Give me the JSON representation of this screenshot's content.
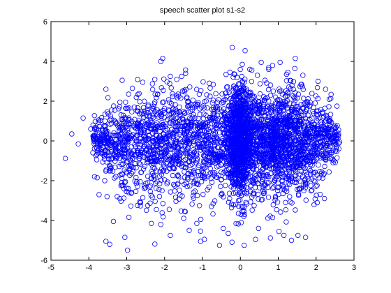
{
  "chart_data": {
    "type": "scatter",
    "title": "speech scatter plot s1-s2",
    "xlabel": "",
    "ylabel": "",
    "xlim": [
      -5,
      3
    ],
    "ylim": [
      -6,
      6
    ],
    "xticks": [
      -5,
      -4,
      -3,
      -2,
      -1,
      0,
      1,
      2,
      3
    ],
    "yticks": [
      -6,
      -4,
      -2,
      0,
      2,
      4,
      6
    ],
    "grid": false,
    "legend": false,
    "marker": "circle-open",
    "color": "#0000ff",
    "series": [
      {
        "x": [
          -4.62,
          -4.45,
          -4.28,
          -4.15,
          -3.95,
          -3.85,
          -3.78,
          -3.73,
          -3.68,
          -3.55,
          -3.35,
          -3.18,
          -2.98,
          -3.05,
          -2.35,
          -2.05,
          -2.1,
          -1.85,
          -1.35,
          -1.15,
          -3.18,
          -3.55,
          -3.45,
          -3.58,
          -3.12,
          -2.95,
          -2.45,
          -2.58,
          -2.85,
          -2.25,
          -1.85,
          -1.55,
          -1.05,
          -0.95,
          -0.55,
          -0.32,
          -0.15,
          0.05,
          0.25,
          0.45,
          0.55,
          0.65,
          0.85,
          1.05,
          1.25,
          1.45,
          1.65,
          0.4,
          0.1,
          2.05,
          2.25,
          2.55,
          2.62,
          -0.05,
          0.02,
          0.05,
          0.85,
          1.15,
          1.35,
          -0.12,
          -3.25,
          -3.05,
          -2.75,
          -3.4,
          -3.52,
          -2.6,
          -1.48,
          0.48,
          1.02,
          1.52,
          1.72,
          2.22,
          -0.82,
          -0.45,
          0.75,
          1.22,
          -1.25,
          -0.65
        ],
        "y": [
          -0.88,
          0.35,
          -0.15,
          1.15,
          0.6,
          -1.8,
          -1.85,
          -2.7,
          -0.5,
          -5.05,
          -4.05,
          -2.9,
          -5.5,
          -4.85,
          -4.15,
          4.15,
          4.0,
          -4.75,
          -4.5,
          -4.15,
          1.95,
          2.6,
          -5.2,
          -2.0,
          3.05,
          2.35,
          1.55,
          2.95,
          2.65,
          2.35,
          3.25,
          3.25,
          -5.05,
          -4.95,
          -5.25,
          -4.65,
          3.35,
          3.85,
          3.6,
          3.3,
          3.95,
          3.05,
          3.8,
          3.95,
          3.45,
          4.15,
          3.3,
          -4.95,
          -5.25,
          3.0,
          2.6,
          1.75,
          -0.05,
          -3.65,
          -3.7,
          -3.55,
          -3.85,
          -4.75,
          -5.0,
          -3.2,
          -2.8,
          0.5,
          -1.35,
          1.55,
          -2.8,
          1.35,
          2.55,
          -4.4,
          -4.55,
          -4.75,
          -4.85,
          -2.9,
          2.9,
          -4.4,
          3.6,
          3.35,
          2.05,
          1.65
        ]
      }
    ]
  }
}
